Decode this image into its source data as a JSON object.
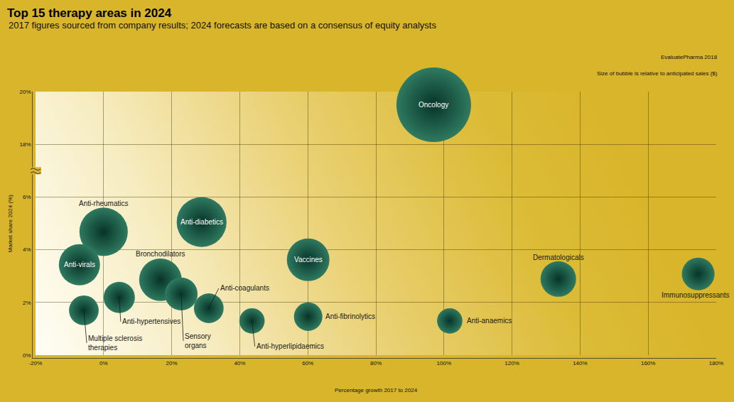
{
  "chart_data": {
    "type": "scatter",
    "title": "Top 15 therapy areas in 2024",
    "subtitle": "2017 figures sourced from company results; 2024 forecasts are based on a consensus of equity analysts",
    "annotations": [
      "EvaluatePharma 2018",
      "Size of bubble is relative to anticipated sales ($)"
    ],
    "xlabel": "Percentage growth 2017 to 2024",
    "ylabel": "Market share 2024 (%)",
    "labels": [
      "Oncology",
      "Anti-rheumatics",
      "Anti-diabetics",
      "Anti-virals",
      "Bronchodilators",
      "Vaccines",
      "Dermatologicals",
      "Immunosuppressants",
      "Sensory organs",
      "Anti-hypertensives",
      "Multiple sclerosis therapies",
      "Anti-coagulants",
      "Anti-hyperlipidaemics",
      "Anti-fibrinolytics",
      "Anti-anaemics"
    ],
    "x": [
      97,
      0,
      28.8,
      -7.1,
      16.7,
      60.1,
      133.6,
      174.7,
      22.8,
      4.6,
      -5.8,
      30.9,
      43.6,
      60.1,
      101.7
    ],
    "values": [
      19.5,
      4.68,
      5.05,
      3.43,
      2.86,
      3.62,
      2.89,
      3.08,
      2.32,
      2.19,
      1.7,
      1.78,
      1.3,
      1.46,
      1.3
    ],
    "sizes": [
      233,
      98,
      104,
      71,
      76,
      76,
      53,
      45,
      45,
      41,
      37,
      37,
      27,
      34,
      27
    ],
    "color": "#2f7a61",
    "xlim": [
      -20,
      180
    ],
    "xticks": [
      {
        "value": -20,
        "label": "-20%"
      },
      {
        "value": 0,
        "label": "0%"
      },
      {
        "value": 20,
        "label": "20%"
      },
      {
        "value": 40,
        "label": "40%"
      },
      {
        "value": 60,
        "label": "60%"
      },
      {
        "value": 80,
        "label": "80%"
      },
      {
        "value": 100,
        "label": "100%"
      },
      {
        "value": 120,
        "label": "120%"
      },
      {
        "value": 140,
        "label": "140%"
      },
      {
        "value": 160,
        "label": "160%"
      },
      {
        "value": 180,
        "label": "180%"
      }
    ],
    "ylim": [
      [
        0,
        7
      ],
      [
        17,
        20
      ]
    ],
    "yticks": [
      {
        "value": 0,
        "label": "0%"
      },
      {
        "value": 2,
        "label": "2%"
      },
      {
        "value": 4,
        "label": "4%"
      },
      {
        "value": 6,
        "label": "6%"
      },
      {
        "value": 18,
        "label": "18%"
      },
      {
        "value": 20,
        "label": "20%"
      }
    ],
    "grid": true
  }
}
